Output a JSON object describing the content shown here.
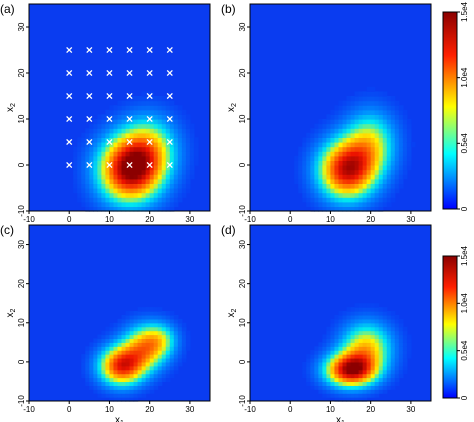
{
  "chart_data": [
    {
      "type": "heatmap",
      "panel_label": "(a)",
      "xlabel": "x",
      "xlabel_sub": "1",
      "ylabel": "x",
      "ylabel_sub": "2",
      "xlim": [
        -10,
        35
      ],
      "ylim": [
        -10,
        35
      ],
      "xticks": [
        -10,
        0,
        10,
        20,
        30
      ],
      "yticks": [
        -10,
        0,
        10,
        20,
        30
      ],
      "blobs": [
        {
          "x": 15,
          "y": -1,
          "sx": 5.5,
          "sy": 5,
          "amp": 14000.0
        },
        {
          "x": 20,
          "y": 4,
          "sx": 5,
          "sy": 5,
          "amp": 6000.0
        }
      ],
      "markers": {
        "symbol": "×",
        "color": "#ffffff",
        "x": [
          0,
          5,
          10,
          15,
          20,
          25
        ],
        "y": [
          0,
          5,
          10,
          15,
          20,
          25
        ]
      }
    },
    {
      "type": "heatmap",
      "panel_label": "(b)",
      "xlabel": "x",
      "xlabel_sub": "1",
      "ylabel": "x",
      "ylabel_sub": "2",
      "xlim": [
        -10,
        35
      ],
      "ylim": [
        -10,
        35
      ],
      "xticks": [
        -10,
        0,
        10,
        20,
        30
      ],
      "yticks": [
        -10,
        0,
        10,
        20,
        30
      ],
      "blobs": [
        {
          "x": 14,
          "y": -1,
          "sx": 5,
          "sy": 4.5,
          "amp": 13000.0
        },
        {
          "x": 20,
          "y": 5,
          "sx": 4.5,
          "sy": 5,
          "amp": 6500.0
        }
      ]
    },
    {
      "type": "heatmap",
      "panel_label": "(c)",
      "xlabel": "x",
      "xlabel_sub": "1",
      "ylabel": "x",
      "ylabel_sub": "2",
      "xlim": [
        -10,
        35
      ],
      "ylim": [
        -10,
        35
      ],
      "xticks": [
        -10,
        0,
        10,
        20,
        30
      ],
      "yticks": [
        -10,
        0,
        10,
        20,
        30
      ],
      "blobs": [
        {
          "x": 13,
          "y": -1,
          "sx": 4,
          "sy": 3.5,
          "amp": 12000.0
        },
        {
          "x": 19,
          "y": 4,
          "sx": 4,
          "sy": 4,
          "amp": 8500.0
        },
        {
          "x": 23,
          "y": 6,
          "sx": 3,
          "sy": 3,
          "amp": 3500.0
        }
      ]
    },
    {
      "type": "heatmap",
      "panel_label": "(d)",
      "xlabel": "x",
      "xlabel_sub": "1",
      "ylabel": "x",
      "ylabel_sub": "2",
      "xlim": [
        -10,
        35
      ],
      "ylim": [
        -10,
        35
      ],
      "xticks": [
        -10,
        0,
        10,
        20,
        30
      ],
      "yticks": [
        -10,
        0,
        10,
        20,
        30
      ],
      "blobs": [
        {
          "x": 15,
          "y": -2,
          "sx": 4.5,
          "sy": 3,
          "amp": 13500.0
        },
        {
          "x": 19,
          "y": 4,
          "sx": 4.5,
          "sy": 4.5,
          "amp": 8000.0
        }
      ]
    }
  ],
  "colorbar": {
    "min": 0,
    "max": 15000,
    "tick_labels": [
      "0",
      "0.5e4",
      "1.0e4",
      "1.5e4"
    ],
    "tick_values": [
      0,
      5000,
      10000,
      15000
    ],
    "colors": [
      "#0000ff",
      "#00ffff",
      "#ffff00",
      "#ff0000",
      "#8b0000"
    ]
  }
}
